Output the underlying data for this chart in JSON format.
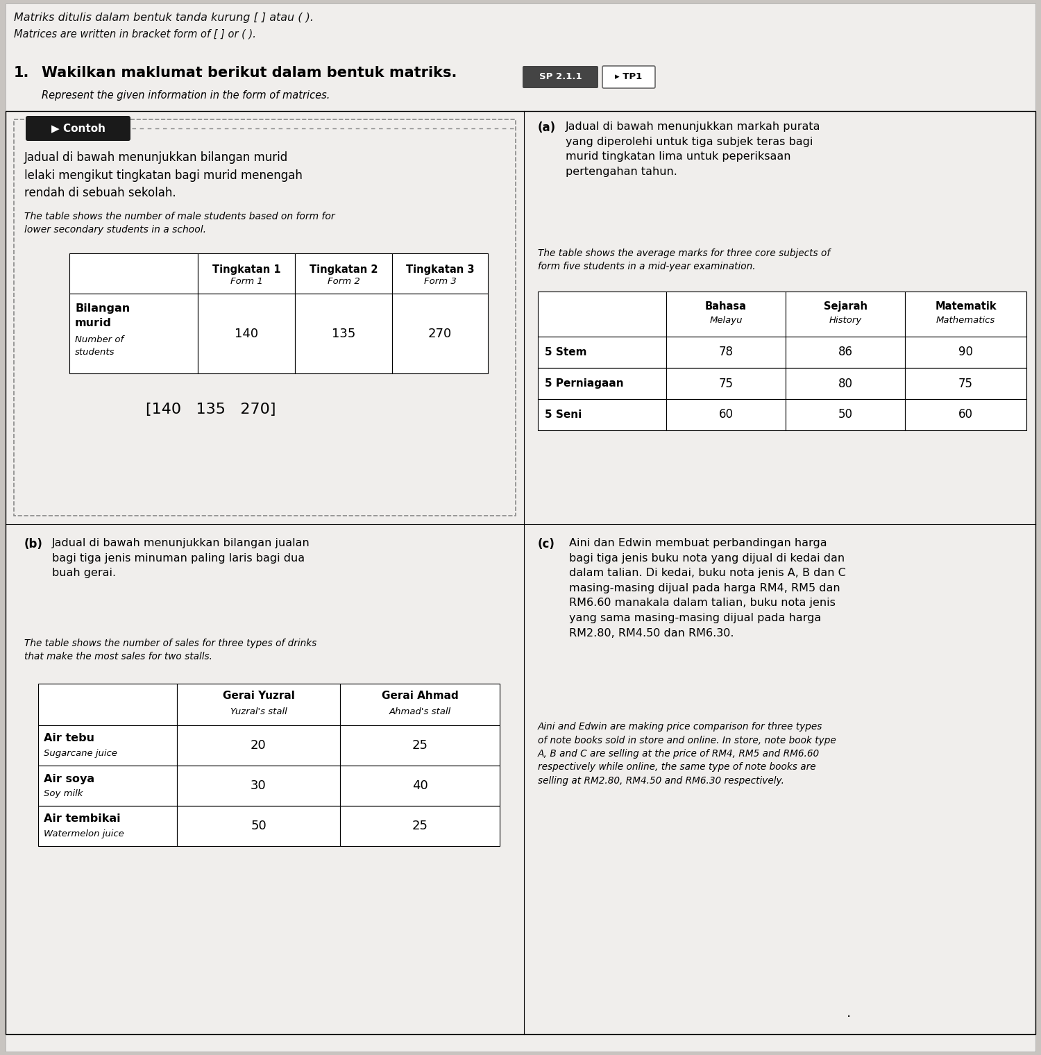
{
  "page_bg": "#c8c4c0",
  "content_bg": "#f0eeec",
  "white": "#ffffff",
  "header_text_malay": "Matriks ditulis dalam bentuk tanda kurung [ ] atau ( ).",
  "header_text_english": "Matrices are written in bracket form of [ ] or ( ).",
  "question_number": "1.",
  "question_malay": "Wakilkan maklumat berikut dalam bentuk matriks.",
  "question_sp": "SP 2.1.1",
  "question_tp": "▸ TP1",
  "question_english": "Represent the given information in the form of matrices.",
  "contoh_label": "▶ Contoh",
  "contoh_table_headers": [
    "Tingkatan 1\nForm 1",
    "Tingkatan 2\nForm 2",
    "Tingkatan 3\nForm 3"
  ],
  "contoh_table_row_header_malay": "Bilangan\nmurid",
  "contoh_table_row_header_english": "Number of\nstudents",
  "contoh_table_values": [
    140,
    135,
    270
  ],
  "contoh_matrix": "[140   135   270]",
  "part_a_label": "(a)",
  "part_a_col_headers": [
    "Bahasa\nMelayu",
    "Sejarah\nHistory",
    "Matematik\nMathematics"
  ],
  "part_a_row_headers": [
    "5 Stem",
    "5 Perniagaan",
    "5 Seni"
  ],
  "part_a_data": [
    [
      78,
      86,
      90
    ],
    [
      75,
      80,
      75
    ],
    [
      60,
      50,
      60
    ]
  ],
  "part_b_label": "(b)",
  "part_b_col_headers": [
    "Gerai Yuzral\nYuzral's stall",
    "Gerai Ahmad\nAhmad's stall"
  ],
  "part_b_row_headers_malay": [
    "Air tebu",
    "Air soya",
    "Air tembikai"
  ],
  "part_b_row_headers_english": [
    "Sugarcane juice",
    "Soy milk",
    "Watermelon juice"
  ],
  "part_b_data": [
    [
      20,
      25
    ],
    [
      30,
      40
    ],
    [
      50,
      25
    ]
  ],
  "part_c_label": "(c)"
}
